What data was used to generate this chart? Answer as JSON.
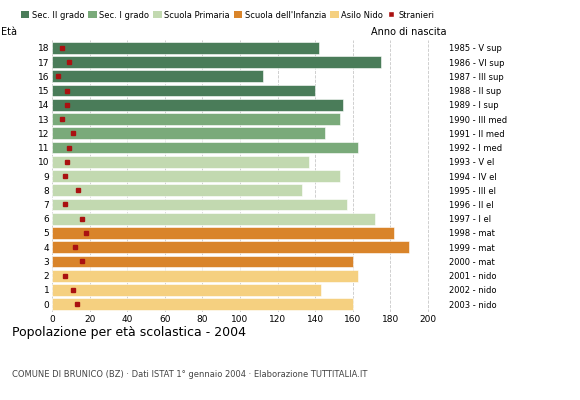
{
  "ages": [
    18,
    17,
    16,
    15,
    14,
    13,
    12,
    11,
    10,
    9,
    8,
    7,
    6,
    5,
    4,
    3,
    2,
    1,
    0
  ],
  "bar_values": [
    142,
    175,
    112,
    140,
    155,
    153,
    145,
    163,
    137,
    153,
    133,
    157,
    172,
    182,
    190,
    160,
    163,
    143,
    160
  ],
  "stranieri": [
    5,
    9,
    3,
    8,
    8,
    5,
    11,
    9,
    8,
    7,
    14,
    7,
    16,
    18,
    12,
    16,
    7,
    11,
    13
  ],
  "bar_colors": [
    "#4a7c59",
    "#4a7c59",
    "#4a7c59",
    "#4a7c59",
    "#4a7c59",
    "#7aaa7a",
    "#7aaa7a",
    "#7aaa7a",
    "#c2d9b0",
    "#c2d9b0",
    "#c2d9b0",
    "#c2d9b0",
    "#c2d9b0",
    "#d9842a",
    "#d9842a",
    "#d9842a",
    "#f5d080",
    "#f5d080",
    "#f5d080"
  ],
  "anno_nascita": [
    "1985 - V sup",
    "1986 - VI sup",
    "1987 - III sup",
    "1988 - II sup",
    "1989 - I sup",
    "1990 - III med",
    "1991 - II med",
    "1992 - I med",
    "1993 - V el",
    "1994 - IV el",
    "1995 - III el",
    "1996 - II el",
    "1997 - I el",
    "1998 - mat",
    "1999 - mat",
    "2000 - mat",
    "2001 - nido",
    "2002 - nido",
    "2003 - nido"
  ],
  "legend_labels": [
    "Sec. II grado",
    "Sec. I grado",
    "Scuola Primaria",
    "Scuola dell'Infanzia",
    "Asilo Nido",
    "Stranieri"
  ],
  "legend_colors": [
    "#4a7c59",
    "#7aaa7a",
    "#c2d9b0",
    "#d9842a",
    "#f5d080",
    "#aa1111"
  ],
  "stranieri_color": "#aa1111",
  "title": "Popolazione per età scolastica - 2004",
  "subtitle": "COMUNE DI BRUNICO (BZ) · Dati ISTAT 1° gennaio 2004 · Elaborazione TUTTITALIA.IT",
  "xlabel_eta": "Età",
  "xlabel_anno": "Anno di nascita",
  "xlim": [
    0,
    210
  ],
  "xticks": [
    0,
    20,
    40,
    60,
    80,
    100,
    120,
    140,
    160,
    180,
    200
  ],
  "grid_color": "#c8c8c8",
  "bg_color": "#ffffff",
  "bar_height": 0.82
}
